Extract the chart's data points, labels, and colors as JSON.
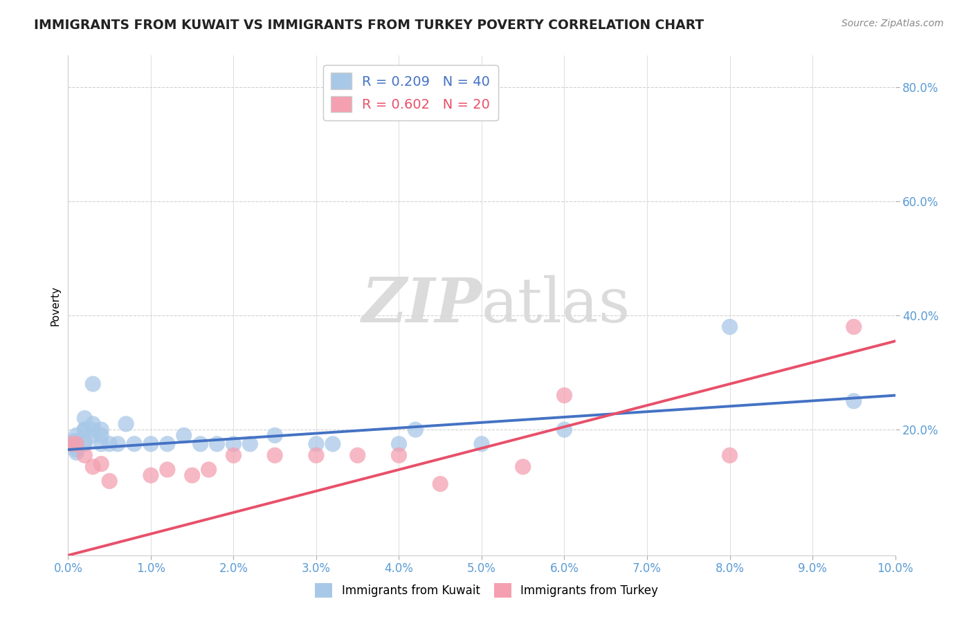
{
  "title": "IMMIGRANTS FROM KUWAIT VS IMMIGRANTS FROM TURKEY POVERTY CORRELATION CHART",
  "source": "Source: ZipAtlas.com",
  "ylabel": "Poverty",
  "x_min": 0.0,
  "x_max": 0.1,
  "y_min": -0.02,
  "y_max": 0.855,
  "x_ticks": [
    0.0,
    0.01,
    0.02,
    0.03,
    0.04,
    0.05,
    0.06,
    0.07,
    0.08,
    0.09,
    0.1
  ],
  "x_tick_labels": [
    "0.0%",
    "1.0%",
    "2.0%",
    "3.0%",
    "4.0%",
    "5.0%",
    "6.0%",
    "7.0%",
    "8.0%",
    "9.0%",
    "10.0%"
  ],
  "y_ticks": [
    0.2,
    0.4,
    0.6,
    0.8
  ],
  "y_tick_labels": [
    "20.0%",
    "40.0%",
    "60.0%",
    "80.0%"
  ],
  "kuwait_color": "#a8c8e8",
  "turkey_color": "#f4a0b0",
  "kuwait_line_color": "#4472c4",
  "turkey_line_color": "#e8506a",
  "kuwait_R": 0.209,
  "kuwait_N": 40,
  "turkey_R": 0.602,
  "turkey_N": 20,
  "watermark_zip": "ZIP",
  "watermark_atlas": "atlas",
  "background_color": "#ffffff",
  "grid_color": "#d0d0d0",
  "kuwait_x": [
    0.0005,
    0.0008,
    0.001,
    0.001,
    0.001,
    0.001,
    0.001,
    0.001,
    0.002,
    0.002,
    0.002,
    0.002,
    0.002,
    0.003,
    0.003,
    0.003,
    0.003,
    0.004,
    0.004,
    0.004,
    0.005,
    0.006,
    0.007,
    0.008,
    0.01,
    0.012,
    0.014,
    0.016,
    0.018,
    0.02,
    0.022,
    0.025,
    0.03,
    0.032,
    0.04,
    0.042,
    0.05,
    0.06,
    0.08,
    0.095
  ],
  "kuwait_y": [
    0.175,
    0.18,
    0.17,
    0.16,
    0.165,
    0.18,
    0.19,
    0.175,
    0.2,
    0.175,
    0.22,
    0.2,
    0.18,
    0.28,
    0.2,
    0.21,
    0.19,
    0.175,
    0.19,
    0.2,
    0.175,
    0.175,
    0.21,
    0.175,
    0.175,
    0.175,
    0.19,
    0.175,
    0.175,
    0.175,
    0.175,
    0.19,
    0.175,
    0.175,
    0.175,
    0.2,
    0.175,
    0.2,
    0.38,
    0.25
  ],
  "turkey_x": [
    0.0005,
    0.001,
    0.002,
    0.003,
    0.004,
    0.005,
    0.01,
    0.012,
    0.015,
    0.017,
    0.02,
    0.025,
    0.03,
    0.035,
    0.04,
    0.045,
    0.055,
    0.06,
    0.08,
    0.095
  ],
  "turkey_y": [
    0.175,
    0.175,
    0.155,
    0.135,
    0.14,
    0.11,
    0.12,
    0.13,
    0.12,
    0.13,
    0.155,
    0.155,
    0.155,
    0.155,
    0.155,
    0.105,
    0.135,
    0.26,
    0.155,
    0.38
  ],
  "turkey_line_x0": 0.0,
  "turkey_line_y0": -0.02,
  "turkey_line_x1": 0.1,
  "turkey_line_y1": 0.355,
  "kuwait_line_x0": 0.0,
  "kuwait_line_y0": 0.165,
  "kuwait_line_x1": 0.1,
  "kuwait_line_y1": 0.26
}
